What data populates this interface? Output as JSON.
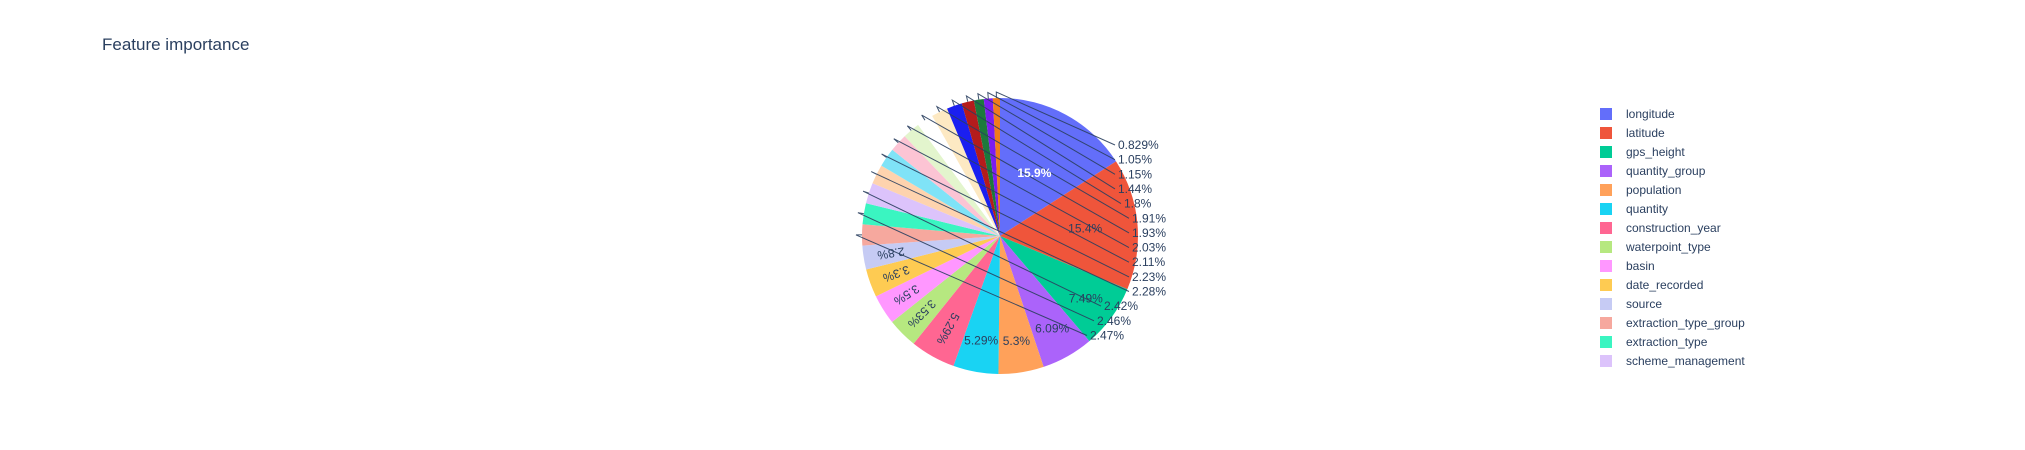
{
  "chart_data": {
    "type": "pie",
    "title": "Feature importance",
    "legend_position": "right",
    "slices": [
      {
        "label": "longitude",
        "value": 15.9,
        "text": "15.9%",
        "color": "#636efa"
      },
      {
        "label": "latitude",
        "value": 15.4,
        "text": "15.4%",
        "color": "#EF553B"
      },
      {
        "label": "gps_height",
        "value": 7.49,
        "text": "7.49%",
        "color": "#00cc96"
      },
      {
        "label": "quantity_group",
        "value": 6.09,
        "text": "6.09%",
        "color": "#ab63fa"
      },
      {
        "label": "population",
        "value": 5.3,
        "text": "5.3%",
        "color": "#FFA15A"
      },
      {
        "label": "quantity",
        "value": 5.29,
        "text": "5.29%",
        "color": "#19d3f3"
      },
      {
        "label": "construction_year",
        "value": 5.29,
        "text": "5.29%",
        "color": "#FF6692"
      },
      {
        "label": "waterpoint_type",
        "value": 3.53,
        "text": "3.53%",
        "color": "#B6E880"
      },
      {
        "label": "basin",
        "value": 3.5,
        "text": "3.5%",
        "color": "#FF97FF"
      },
      {
        "label": "date_recorded",
        "value": 3.3,
        "text": "3.3%",
        "color": "#FECB52"
      },
      {
        "label": "source",
        "value": 2.8,
        "text": "2.8%",
        "color": "#c6cbf4"
      },
      {
        "label": "extraction_type_group",
        "value": 2.47,
        "text": "2.47%",
        "color": "#f6a89e"
      },
      {
        "label": "extraction_type",
        "value": 2.46,
        "text": "2.46%",
        "color": "#3af5c1"
      },
      {
        "label": "scheme_management",
        "value": 2.42,
        "text": "2.42%",
        "color": "#dcc3fb"
      },
      {
        "label": "",
        "value": 2.28,
        "text": "2.28%",
        "color": "#fed3ae"
      },
      {
        "label": "",
        "value": 2.23,
        "text": "2.23%",
        "color": "#7fe3f7"
      },
      {
        "label": "",
        "value": 2.11,
        "text": "2.11%",
        "color": "#fcc4d4"
      },
      {
        "label": "",
        "value": 2.03,
        "text": "2.03%",
        "color": "#e3f5cd"
      },
      {
        "label": "",
        "value": 1.93,
        "text": "1.93%",
        "color": "#ffffff"
      },
      {
        "label": "",
        "value": 1.91,
        "text": "1.91%",
        "color": "#fde9c3"
      },
      {
        "label": "",
        "value": 1.8,
        "text": "1.8%",
        "color": "#1b1ff0"
      },
      {
        "label": "",
        "value": 1.44,
        "text": "1.44%",
        "color": "#b41c1c"
      },
      {
        "label": "",
        "value": 1.15,
        "text": "1.15%",
        "color": "#1c7a3c"
      },
      {
        "label": "",
        "value": 1.05,
        "text": "1.05%",
        "color": "#7b1cf0"
      },
      {
        "label": "",
        "value": 0.829,
        "text": "0.829%",
        "color": "#f07b1c"
      }
    ]
  }
}
